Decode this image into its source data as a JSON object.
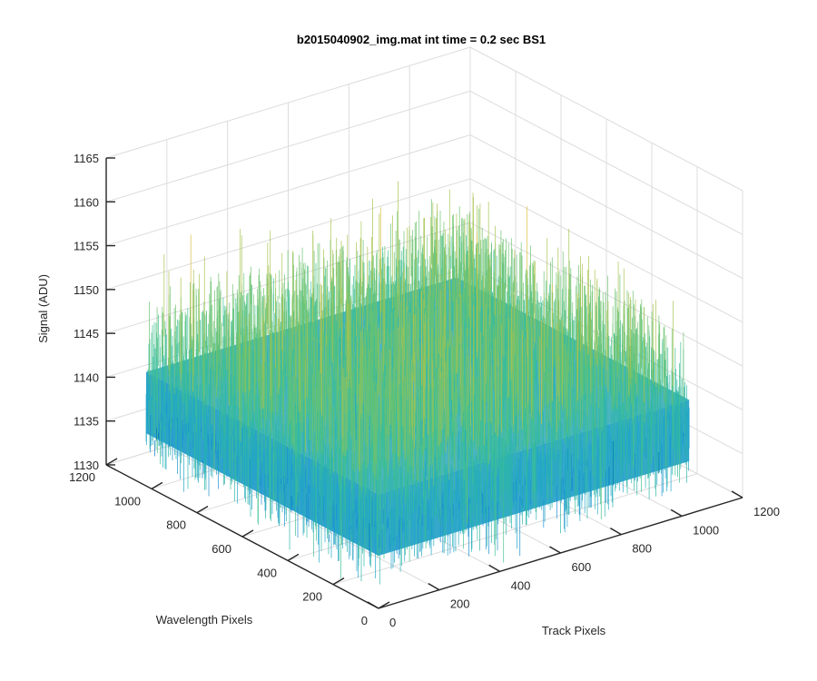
{
  "chart_data": {
    "type": "surface",
    "title": "b2015040902_img.mat int time = 0.2 sec   BS1",
    "zlabel": "Signal (ADU)",
    "wavelength_label": "Wavelength Pixels",
    "track_label": "Track Pixels",
    "zlim": [
      1130,
      1165
    ],
    "z_ticks": [
      "1130",
      "1135",
      "1140",
      "1145",
      "1150",
      "1155",
      "1160",
      "1165"
    ],
    "wavelength_lim": [
      0,
      1200
    ],
    "wavelength_ticks": [
      "0",
      "200",
      "400",
      "600",
      "800",
      "1000",
      "1200"
    ],
    "track_lim": [
      0,
      1200
    ],
    "track_ticks": [
      "0",
      "200",
      "400",
      "600",
      "800",
      "1000",
      "1200"
    ],
    "surface": {
      "extent_wavelength": [
        0,
        1024
      ],
      "extent_track": [
        0,
        1024
      ],
      "mean_signal": 1143,
      "noise_range": [
        1133,
        1160
      ]
    },
    "grid": true,
    "colormap": "parula"
  }
}
